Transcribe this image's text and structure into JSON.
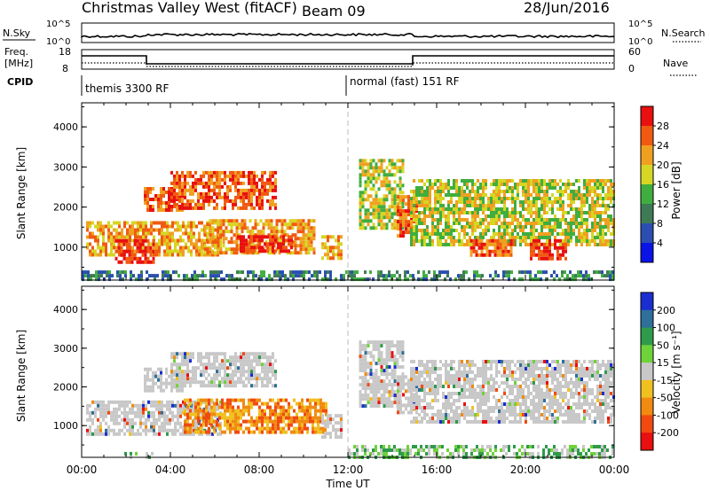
{
  "header": {
    "station": "Christmas Valley West (fitACF)",
    "beam": "Beam 09",
    "date": "28/Jun/2016"
  },
  "status_panel": {
    "nsky_label": "N.Sky",
    "nsky_ticks": [
      "10^5",
      "10^0"
    ],
    "nsearch_label": "N.Search",
    "nsearch_ticks": [
      "10^5",
      "10^0"
    ],
    "freq_label_line1": "Freq.",
    "freq_label_line2": "[MHz]",
    "freq_ticks": [
      "18",
      "8"
    ],
    "nave_label": "Nave",
    "nave_ticks": [
      "60",
      "0"
    ],
    "cpid_label": "CPID",
    "cpid_modes": [
      {
        "name": "themis 3300 RF",
        "start_hour": 0
      },
      {
        "name": "normal (fast) 151 RF",
        "start_hour": 12
      }
    ]
  },
  "chart_data": [
    {
      "type": "heatmap",
      "name": "power",
      "ylabel": "Slant Range [km]",
      "xlabel": "Time UT",
      "xlim_hours": [
        0,
        24
      ],
      "ylim_km": [
        180,
        4600
      ],
      "y_ticks": [
        1000,
        2000,
        3000,
        4000
      ],
      "x_tick_labels": [
        "00:00",
        "04:00",
        "08:00",
        "12:00",
        "16:00",
        "20:00",
        "00:00"
      ],
      "colorbar": {
        "label": "Power [dB]",
        "ticks": [
          "4",
          "8",
          "12",
          "16",
          "20",
          "24",
          "28"
        ],
        "colors": [
          "#0a14e6",
          "#2a4fb0",
          "#3f7a56",
          "#3fae3f",
          "#d6d624",
          "#f0a020",
          "#f05a10",
          "#e81010"
        ]
      },
      "regions": [
        {
          "t0": 0.2,
          "t1": 6.2,
          "r0": 800,
          "r1": 1650,
          "level": 5
        },
        {
          "t0": 1.5,
          "t1": 3.2,
          "r0": 650,
          "r1": 1200,
          "level": 7
        },
        {
          "t0": 2.8,
          "t1": 4.5,
          "r0": 1900,
          "r1": 2500,
          "level": 6
        },
        {
          "t0": 4.0,
          "t1": 8.8,
          "r0": 2000,
          "r1": 2900,
          "level": 6
        },
        {
          "t0": 5.5,
          "t1": 10.5,
          "r0": 900,
          "r1": 1700,
          "level": 5
        },
        {
          "t0": 7.0,
          "t1": 9.5,
          "r0": 900,
          "r1": 1300,
          "level": 7
        },
        {
          "t0": 10.8,
          "t1": 11.7,
          "r0": 700,
          "r1": 1300,
          "level": 5
        },
        {
          "t0": 12.5,
          "t1": 14.5,
          "r0": 1500,
          "r1": 3200,
          "level": 4
        },
        {
          "t0": 14.2,
          "t1": 15.1,
          "r0": 1300,
          "r1": 2300,
          "level": 6
        },
        {
          "t0": 14.8,
          "t1": 24.0,
          "r0": 1100,
          "r1": 2700,
          "level": 4
        },
        {
          "t0": 17.5,
          "t1": 19.5,
          "r0": 800,
          "r1": 1200,
          "level": 6
        },
        {
          "t0": 20.2,
          "t1": 21.8,
          "r0": 700,
          "r1": 1200,
          "level": 7
        },
        {
          "t0": 0.0,
          "t1": 24.0,
          "r0": 180,
          "r1": 420,
          "level": 2
        }
      ]
    },
    {
      "type": "heatmap",
      "name": "velocity",
      "ylabel": "Slant Range [km]",
      "xlabel": "Time UT",
      "xlim_hours": [
        0,
        24
      ],
      "ylim_km": [
        180,
        4600
      ],
      "y_ticks": [
        1000,
        2000,
        3000,
        4000
      ],
      "x_tick_labels": [
        "00:00",
        "04:00",
        "08:00",
        "12:00",
        "16:00",
        "20:00",
        "00:00"
      ],
      "colorbar": {
        "label": "Velocity [m s⁻¹]",
        "ticks": [
          "200",
          "100",
          "50",
          "15",
          "-15",
          "-50",
          "-100",
          "-200"
        ],
        "colors": [
          "#1a2ed0",
          "#2f6f9a",
          "#2f9a4a",
          "#6ed23a",
          "#c8c8c8",
          "#f0c020",
          "#f08a10",
          "#f04a10",
          "#e81010"
        ]
      },
      "regions": [
        {
          "t0": 0.2,
          "t1": 6.2,
          "r0": 800,
          "r1": 1650,
          "level": 4
        },
        {
          "t0": 2.8,
          "t1": 4.5,
          "r0": 1900,
          "r1": 2500,
          "level": 4
        },
        {
          "t0": 4.0,
          "t1": 8.8,
          "r0": 2000,
          "r1": 2900,
          "level": 4
        },
        {
          "t0": 4.6,
          "t1": 11.0,
          "r0": 800,
          "r1": 1700,
          "level": 6
        },
        {
          "t0": 10.8,
          "t1": 11.7,
          "r0": 700,
          "r1": 1300,
          "level": 4
        },
        {
          "t0": 12.5,
          "t1": 14.5,
          "r0": 1500,
          "r1": 3200,
          "level": 4
        },
        {
          "t0": 14.2,
          "t1": 15.1,
          "r0": 1300,
          "r1": 2300,
          "level": 4
        },
        {
          "t0": 14.8,
          "t1": 24.0,
          "r0": 1100,
          "r1": 2700,
          "level": 4
        },
        {
          "t0": 12.0,
          "t1": 24.0,
          "r0": 180,
          "r1": 500,
          "level": 3
        },
        {
          "t0": 1.8,
          "t1": 3.2,
          "r0": 220,
          "r1": 320,
          "level": 3
        }
      ]
    }
  ]
}
